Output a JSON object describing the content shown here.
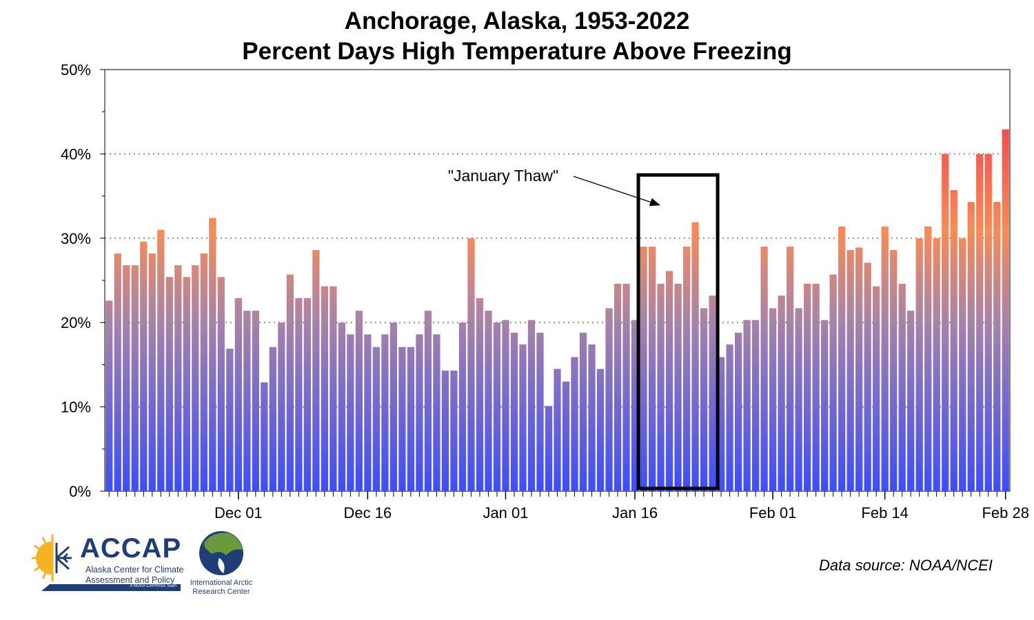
{
  "chart_data": {
    "type": "bar",
    "title": "Anchorage, Alaska, 1953-2022",
    "subtitle": "Percent Days High Temperature Above Freezing",
    "ylim": [
      0,
      50
    ],
    "yticks": [
      0,
      10,
      20,
      30,
      40,
      50
    ],
    "ytick_labels": [
      "0%",
      "10%",
      "20%",
      "30%",
      "40%",
      "50%"
    ],
    "xticks": [
      {
        "index": 15,
        "label": "Dec 01"
      },
      {
        "index": 30,
        "label": "Dec 16"
      },
      {
        "index": 46,
        "label": "Jan 01"
      },
      {
        "index": 61,
        "label": "Jan 16"
      },
      {
        "index": 77,
        "label": "Feb 01"
      },
      {
        "index": 90,
        "label": "Feb 14"
      },
      {
        "index": 104,
        "label": "Feb 28"
      }
    ],
    "grid": "horizontal dotted at 10%, 20%, 30%, 40%",
    "values": [
      22.6,
      28.2,
      26.8,
      26.8,
      29.6,
      28.2,
      31.0,
      25.4,
      26.8,
      25.4,
      26.8,
      28.2,
      32.4,
      25.4,
      16.9,
      22.9,
      21.4,
      21.4,
      12.9,
      17.1,
      20.0,
      25.7,
      22.9,
      22.9,
      28.6,
      24.3,
      24.3,
      20.0,
      18.6,
      21.4,
      18.6,
      17.1,
      18.6,
      20.0,
      17.1,
      17.1,
      18.6,
      21.4,
      18.6,
      14.3,
      14.3,
      20.0,
      30.0,
      22.9,
      21.4,
      20.0,
      20.3,
      18.8,
      17.4,
      20.3,
      18.8,
      10.1,
      14.5,
      13.0,
      15.9,
      18.8,
      17.4,
      14.5,
      21.7,
      24.6,
      24.6,
      20.3,
      29.0,
      29.0,
      24.6,
      26.1,
      24.6,
      29.0,
      31.9,
      21.7,
      23.2,
      15.9,
      17.4,
      18.8,
      20.3,
      20.3,
      29.0,
      21.7,
      23.2,
      29.0,
      21.7,
      24.6,
      24.6,
      20.3,
      25.7,
      31.4,
      28.6,
      28.9,
      27.1,
      24.3,
      31.4,
      28.6,
      24.6,
      21.4,
      30.0,
      31.4,
      30.0,
      40.0,
      35.7,
      30.0,
      34.3,
      40.0,
      40.0,
      34.3,
      42.9
    ],
    "annotation": {
      "text": "\"January Thaw\"",
      "box_start_index": 62,
      "box_end_index": 70,
      "box_top_value": 37.5
    },
    "colors": {
      "bottom": "#3d4dfc",
      "mid": "#a883a8",
      "top": "#f98b55",
      "peak": "#f44d4f",
      "grid": "#a0a0a0"
    }
  },
  "footer": {
    "source": "Data source: NOAA/NCEI"
  },
  "logos": {
    "accap": {
      "acronym": "ACCAP",
      "line1": "Alaska Center for Climate",
      "line2": "Assessment and Policy",
      "team": "A NOAA CAP/RISA Team",
      "colors": {
        "navy": "#1f3e77",
        "sun": "#f5b324"
      }
    },
    "iarc": {
      "line1": "International Arctic",
      "line2": "Research Center",
      "colors": {
        "ocean": "#1f3e77",
        "land": "#6a9a3c"
      }
    }
  }
}
